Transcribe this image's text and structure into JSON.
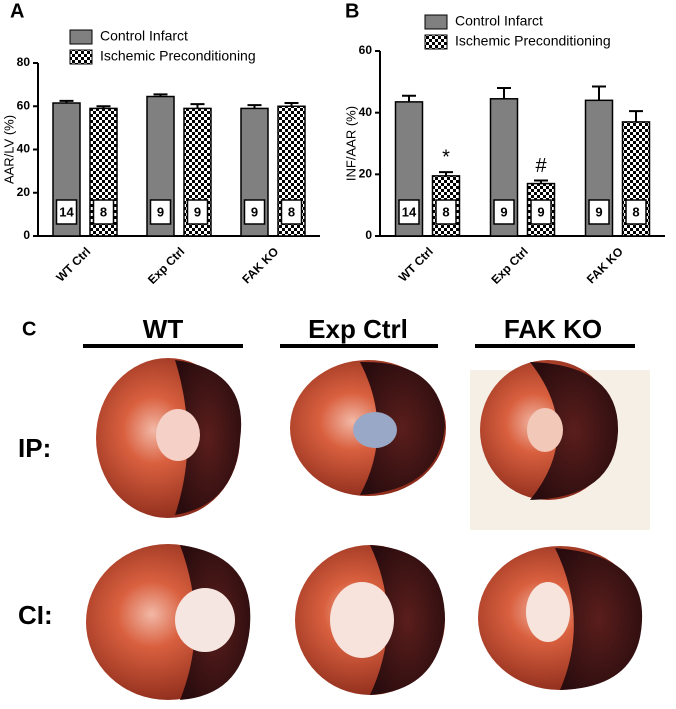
{
  "chart_data": [
    {
      "type": "bar",
      "panel": "A",
      "ylabel": "AAR/LV (%)",
      "categories": [
        "WT Ctrl",
        "Exp Ctrl",
        "FAK KO"
      ],
      "ylim": [
        0,
        80
      ],
      "yticks": [
        0,
        20,
        40,
        60,
        80
      ],
      "series": [
        {
          "name": "Control Infarct",
          "color": "#808080",
          "pattern": "solid",
          "values": [
            61.5,
            64.5,
            59
          ],
          "errors": [
            1,
            1,
            1.5
          ],
          "n": [
            14,
            9,
            9
          ]
        },
        {
          "name": "Ischemic Preconditioning",
          "color": "#000000",
          "pattern": "checker",
          "values": [
            59,
            59,
            60
          ],
          "errors": [
            1,
            2,
            1.5
          ],
          "n": [
            8,
            9,
            8
          ]
        }
      ]
    },
    {
      "type": "bar",
      "panel": "B",
      "ylabel": "INF/AAR (%)",
      "categories": [
        "WT Ctrl",
        "Exp Ctrl",
        "FAK KO"
      ],
      "ylim": [
        0,
        60
      ],
      "yticks": [
        0,
        20,
        40,
        60
      ],
      "series": [
        {
          "name": "Control Infarct",
          "color": "#808080",
          "pattern": "solid",
          "values": [
            43.5,
            44.5,
            44
          ],
          "errors": [
            2,
            3.5,
            4.5
          ],
          "n": [
            14,
            9,
            9
          ]
        },
        {
          "name": "Ischemic Preconditioning",
          "color": "#000000",
          "pattern": "checker",
          "values": [
            19.5,
            17,
            37
          ],
          "errors": [
            1.2,
            1,
            3.5
          ],
          "n": [
            8,
            9,
            8
          ],
          "annotations": [
            "*",
            "#",
            null
          ]
        }
      ]
    }
  ],
  "panel_c": {
    "label": "C",
    "columns": [
      "WT",
      "Exp Ctrl",
      "FAK KO"
    ],
    "rows": [
      "IP:",
      "CI:"
    ]
  }
}
